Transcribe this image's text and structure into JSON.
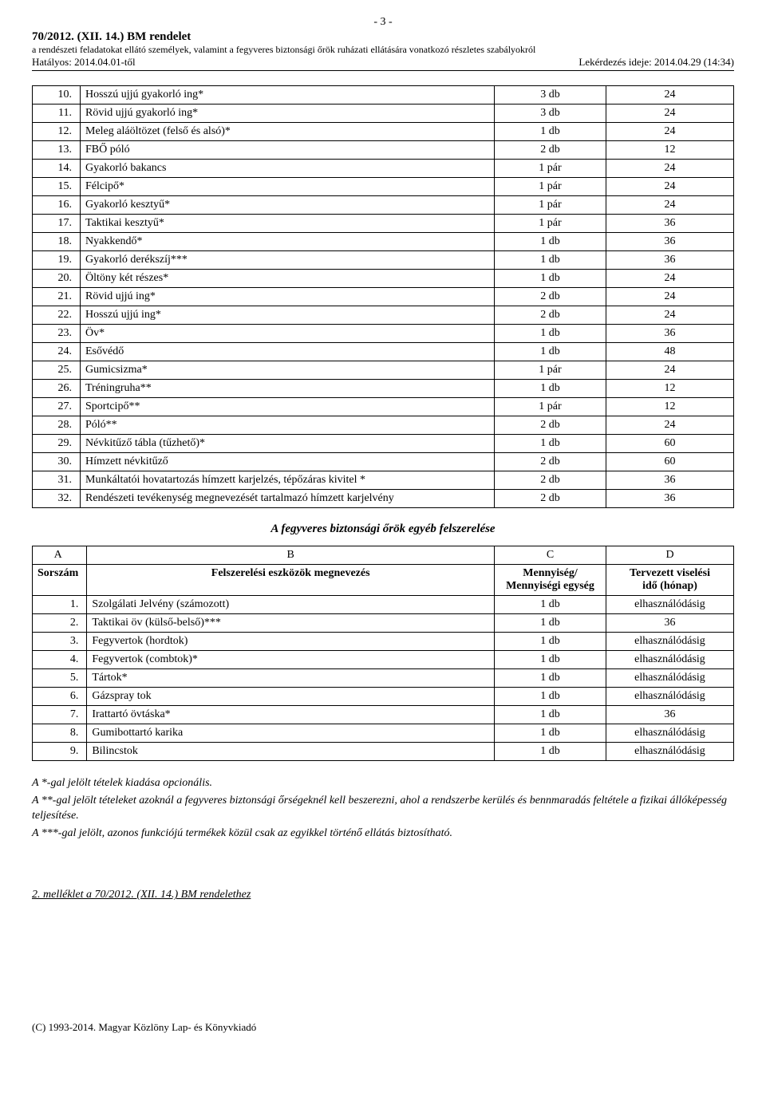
{
  "page_number_label": "- 3 -",
  "header": {
    "title": "70/2012. (XII. 14.) BM rendelet",
    "subtitle": "a rendészeti feladatokat ellátó személyek, valamint a fegyveres biztonsági őrök ruházati ellátására vonatkozó részletes szabályokról",
    "effective_label": "Hatályos: 2014.04.01-től",
    "query_label": "Lekérdezés ideje: 2014.04.29 (14:34)"
  },
  "table1": {
    "rows": [
      {
        "n": "10.",
        "name": "Hosszú ujjú gyakorló ing*",
        "qty": "3 db",
        "time": "24"
      },
      {
        "n": "11.",
        "name": "Rövid ujjú gyakorló ing*",
        "qty": "3 db",
        "time": "24"
      },
      {
        "n": "12.",
        "name": "Meleg aláöltözet (felső és alsó)*",
        "qty": "1 db",
        "time": "24"
      },
      {
        "n": "13.",
        "name": "FBŐ póló",
        "qty": "2 db",
        "time": "12"
      },
      {
        "n": "14.",
        "name": "Gyakorló bakancs",
        "qty": "1 pár",
        "time": "24"
      },
      {
        "n": "15.",
        "name": "Félcipő*",
        "qty": "1 pár",
        "time": "24"
      },
      {
        "n": "16.",
        "name": "Gyakorló kesztyű*",
        "qty": "1 pár",
        "time": "24"
      },
      {
        "n": "17.",
        "name": "Taktikai kesztyű*",
        "qty": "1 pár",
        "time": "36"
      },
      {
        "n": "18.",
        "name": "Nyakkendő*",
        "qty": "1 db",
        "time": "36"
      },
      {
        "n": "19.",
        "name": "Gyakorló derékszíj***",
        "qty": "1 db",
        "time": "36"
      },
      {
        "n": "20.",
        "name": "Öltöny két részes*",
        "qty": "1 db",
        "time": "24"
      },
      {
        "n": "21.",
        "name": "Rövid ujjú ing*",
        "qty": "2 db",
        "time": "24"
      },
      {
        "n": "22.",
        "name": "Hosszú ujjú ing*",
        "qty": "2 db",
        "time": "24"
      },
      {
        "n": "23.",
        "name": "Öv*",
        "qty": "1 db",
        "time": "36"
      },
      {
        "n": "24.",
        "name": "Esővédő",
        "qty": "1 db",
        "time": "48"
      },
      {
        "n": "25.",
        "name": "Gumicsizma*",
        "qty": "1 pár",
        "time": "24"
      },
      {
        "n": "26.",
        "name": "Tréningruha**",
        "qty": "1 db",
        "time": "12"
      },
      {
        "n": "27.",
        "name": "Sportcipő**",
        "qty": "1 pár",
        "time": "12"
      },
      {
        "n": "28.",
        "name": "Póló**",
        "qty": "2 db",
        "time": "24"
      },
      {
        "n": "29.",
        "name": "Névkitűző tábla (tűzhető)*",
        "qty": "1 db",
        "time": "60"
      },
      {
        "n": "30.",
        "name": "Hímzett névkitűző",
        "qty": "2 db",
        "time": "60"
      },
      {
        "n": "31.",
        "name": "Munkáltatói hovatartozás hímzett karjelzés, tépőzáras kivitel *",
        "qty": "2 db",
        "time": "36"
      },
      {
        "n": "32.",
        "name": "Rendészeti tevékenység megnevezését tartalmazó hímzett karjelvény",
        "qty": "2 db",
        "time": "36"
      }
    ]
  },
  "section2_title": "A fegyveres biztonsági őrök egyéb felszerelése",
  "table2": {
    "header_abcd": [
      "A",
      "B",
      "C",
      "D"
    ],
    "header_labels": {
      "sor": "Sorszám",
      "name": "Felszerelési eszközök megnevezés",
      "qty": "Mennyiség/\nMennyiségi egység",
      "time": "Tervezett viselési\nidő (hónap)"
    },
    "rows": [
      {
        "n": "1.",
        "name": "Szolgálati Jelvény (számozott)",
        "qty": "1 db",
        "time": "elhasználódásig"
      },
      {
        "n": "2.",
        "name": "Taktikai öv (külső-belső)***",
        "qty": "1 db",
        "time": "36"
      },
      {
        "n": "3.",
        "name": "Fegyvertok (hordtok)",
        "qty": "1 db",
        "time": "elhasználódásig"
      },
      {
        "n": "4.",
        "name": "Fegyvertok (combtok)*",
        "qty": "1 db",
        "time": "elhasználódásig"
      },
      {
        "n": "5.",
        "name": "Tártok*",
        "qty": "1 db",
        "time": "elhasználódásig"
      },
      {
        "n": "6.",
        "name": "Gázspray tok",
        "qty": "1 db",
        "time": "elhasználódásig"
      },
      {
        "n": "7.",
        "name": "Irattartó övtáska*",
        "qty": "1 db",
        "time": "36"
      },
      {
        "n": "8.",
        "name": "Gumibottartó karika",
        "qty": "1 db",
        "time": "elhasználódásig"
      },
      {
        "n": "9.",
        "name": "Bilincstok",
        "qty": "1 db",
        "time": "elhasználódásig"
      }
    ]
  },
  "notes": [
    "A *-gal jelölt tételek kiadása opcionális.",
    "A **-gal jelölt tételeket azoknál a fegyveres biztonsági őrségeknél kell beszerezni, ahol a rendszerbe kerülés és bennmaradás feltétele a fizikai állóképesség teljesítése.",
    "A ***-gal jelölt, azonos funkciójú termékek közül csak az egyikkel történő ellátás biztosítható."
  ],
  "ref_link": "2. melléklet a 70/2012. (XII. 14.) BM rendelethez",
  "footer": "(C) 1993-2014. Magyar Közlöny Lap- és Könyvkiadó"
}
